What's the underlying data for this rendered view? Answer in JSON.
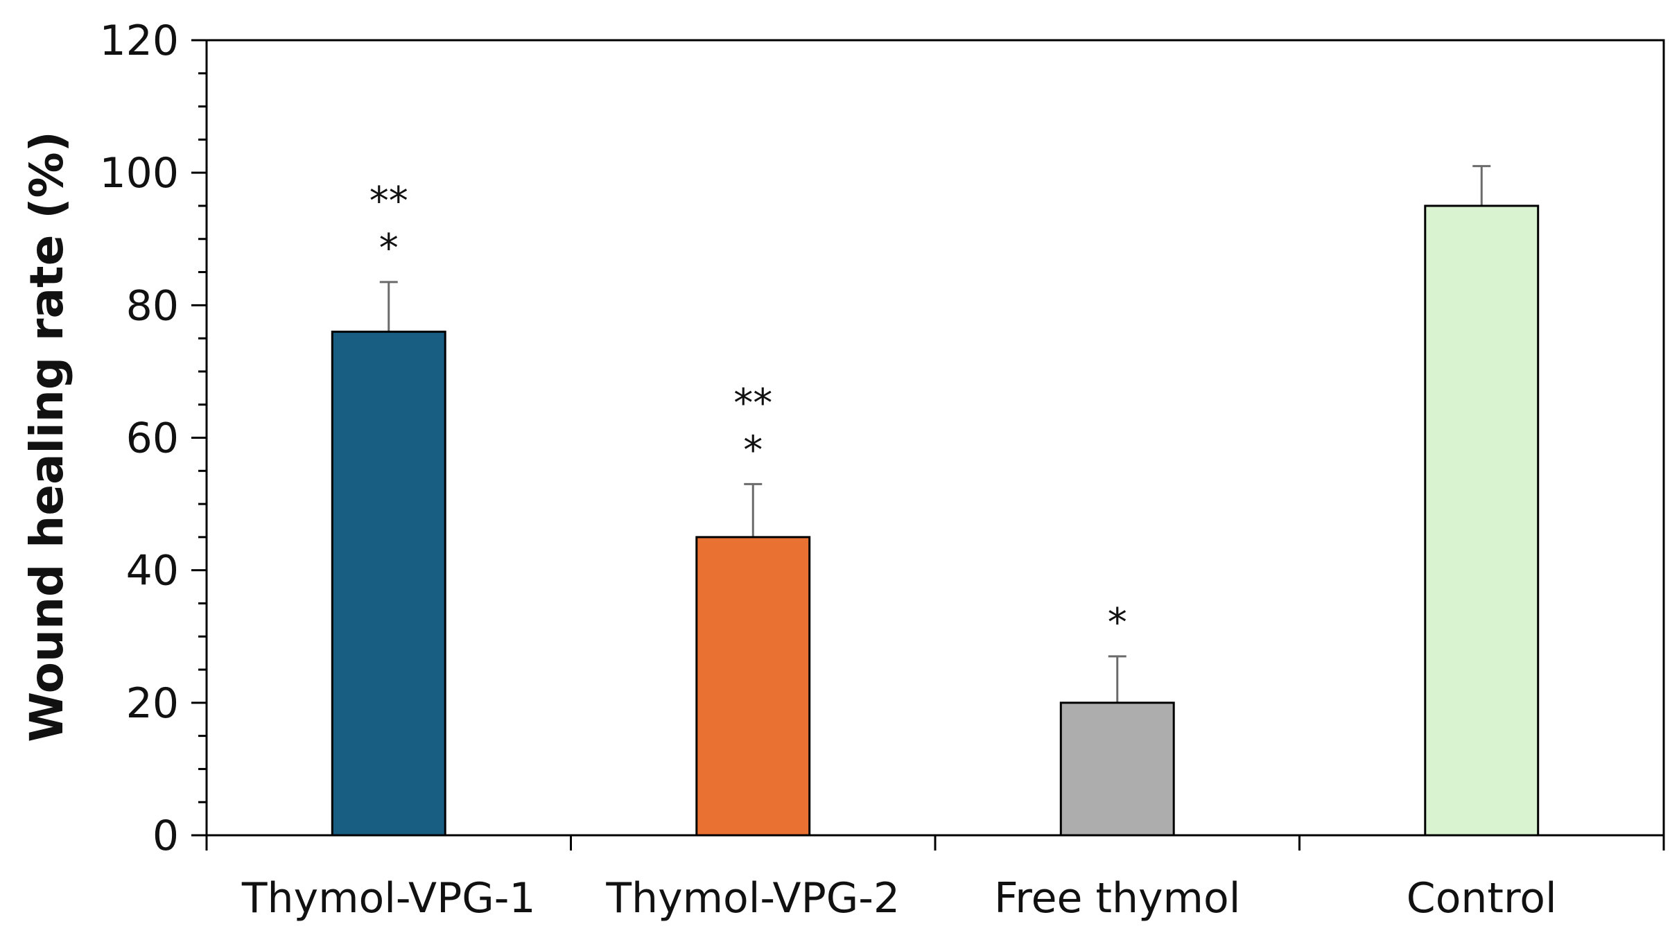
{
  "chart_data": {
    "type": "bar",
    "title": "",
    "xlabel": "",
    "ylabel": "Wound healing rate (%)",
    "ylim": [
      0,
      120
    ],
    "y_ticks": [
      0,
      20,
      40,
      60,
      80,
      100,
      120
    ],
    "y_tick_labels": [
      "0",
      "20",
      "40",
      "60",
      "80",
      "100",
      "120"
    ],
    "y_minor_step": 5,
    "grid": false,
    "legend": "none",
    "categories": [
      "Thymol-VPG-1",
      "Thymol-VPG-2",
      "Free thymol",
      "Control"
    ],
    "series": [
      {
        "name": "Wound healing rate",
        "values": [
          76,
          45,
          20,
          95
        ],
        "errors": [
          7.5,
          8,
          7,
          6
        ],
        "colors": [
          "#175E82",
          "#E97132",
          "#ADADAD",
          "#D9F2D0"
        ]
      }
    ],
    "annotations": [
      {
        "category": "Thymol-VPG-1",
        "lines": [
          "**",
          "*"
        ]
      },
      {
        "category": "Thymol-VPG-2",
        "lines": [
          "**",
          "*"
        ]
      },
      {
        "category": "Free thymol",
        "lines": [
          "*"
        ]
      },
      {
        "category": "Control",
        "lines": []
      }
    ]
  }
}
